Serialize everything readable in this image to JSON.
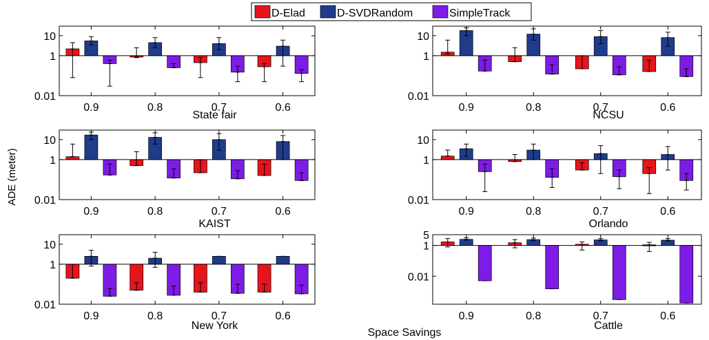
{
  "figure": {
    "ylabel": "ADE (meter)",
    "xlabel": "Space Savings",
    "legend_position": "top-center",
    "colors": {
      "D-Elad": "#e8141c",
      "D-SVDRandom": "#1f3c8c",
      "SimpleTrack": "#7d1ce6"
    }
  },
  "chart_data": [
    {
      "type": "bar",
      "subplot_title": "State fair",
      "yscale": "log",
      "baseline": 1,
      "categories": [
        "0.9",
        "0.8",
        "0.7",
        "0.6"
      ],
      "ylim": [
        0.01,
        30
      ],
      "yticks": [
        0.01,
        1,
        10
      ],
      "ytick_labels": [
        "0.01",
        "1",
        "10"
      ],
      "series": [
        {
          "name": "D-Elad",
          "values": [
            2.2,
            0.85,
            0.45,
            0.28
          ],
          "err_low": [
            0.08,
            0.8,
            0.08,
            0.05
          ],
          "err_high": [
            4.5,
            2.5,
            0.8,
            0.4
          ]
        },
        {
          "name": "D-SVDRandom",
          "values": [
            5.5,
            4.5,
            4.0,
            3.0
          ],
          "err_low": [
            3.5,
            2.5,
            2.0,
            0.3
          ],
          "err_high": [
            9.0,
            8.0,
            8.0,
            6.0
          ]
        },
        {
          "name": "SimpleTrack",
          "values": [
            0.4,
            0.25,
            0.15,
            0.13
          ],
          "err_low": [
            0.03,
            0.25,
            0.05,
            0.05
          ],
          "err_high": [
            0.6,
            0.4,
            0.3,
            0.2
          ]
        }
      ]
    },
    {
      "type": "bar",
      "subplot_title": "NCSU",
      "yscale": "log",
      "baseline": 1,
      "categories": [
        "0.9",
        "0.8",
        "0.7",
        "0.6"
      ],
      "ylim": [
        0.01,
        30
      ],
      "yticks": [
        0.01,
        1,
        10
      ],
      "ytick_labels": [
        "0.01",
        "1",
        "10"
      ],
      "series": [
        {
          "name": "D-Elad",
          "values": [
            1.5,
            0.5,
            0.22,
            0.16
          ],
          "err_low": [
            1.2,
            0.5,
            0.22,
            0.16
          ],
          "err_high": [
            6.0,
            2.5,
            1.0,
            0.6
          ]
        },
        {
          "name": "D-SVDRandom",
          "values": [
            18,
            12,
            9,
            8
          ],
          "err_low": [
            10,
            6,
            4,
            3
          ],
          "err_high": [
            25,
            22,
            18,
            15
          ]
        },
        {
          "name": "SimpleTrack",
          "values": [
            0.17,
            0.12,
            0.11,
            0.09
          ],
          "err_low": [
            0.17,
            0.12,
            0.11,
            0.09
          ],
          "err_high": [
            0.6,
            0.35,
            0.28,
            0.22
          ]
        }
      ]
    },
    {
      "type": "bar",
      "subplot_title": "KAIST",
      "yscale": "log",
      "baseline": 1,
      "categories": [
        "0.9",
        "0.8",
        "0.7",
        "0.6"
      ],
      "ylim": [
        0.01,
        30
      ],
      "yticks": [
        0.01,
        1,
        10
      ],
      "ytick_labels": [
        "0.01",
        "1",
        "10"
      ],
      "series": [
        {
          "name": "D-Elad",
          "values": [
            1.4,
            0.5,
            0.22,
            0.16
          ],
          "err_low": [
            1.4,
            0.5,
            0.22,
            0.16
          ],
          "err_high": [
            6.0,
            2.5,
            1.0,
            0.6
          ]
        },
        {
          "name": "D-SVDRandom",
          "values": [
            17,
            13,
            10,
            8
          ],
          "err_low": [
            10,
            6,
            3,
            1.0
          ],
          "err_high": [
            24,
            22,
            20,
            16
          ]
        },
        {
          "name": "SimpleTrack",
          "values": [
            0.17,
            0.12,
            0.11,
            0.09
          ],
          "err_low": [
            0.17,
            0.12,
            0.11,
            0.09
          ],
          "err_high": [
            0.6,
            0.35,
            0.28,
            0.22
          ]
        }
      ]
    },
    {
      "type": "bar",
      "subplot_title": "Orlando",
      "yscale": "log",
      "baseline": 1,
      "categories": [
        "0.9",
        "0.8",
        "0.7",
        "0.6"
      ],
      "ylim": [
        0.01,
        30
      ],
      "yticks": [
        0.01,
        1,
        10
      ],
      "ytick_labels": [
        "0.01",
        "1",
        "10"
      ],
      "series": [
        {
          "name": "D-Elad",
          "values": [
            1.5,
            0.8,
            0.3,
            0.2
          ],
          "err_low": [
            1.5,
            0.8,
            0.3,
            0.02
          ],
          "err_high": [
            3.0,
            1.8,
            0.7,
            0.4
          ]
        },
        {
          "name": "D-SVDRandom",
          "values": [
            3.5,
            3.0,
            2.0,
            1.8
          ],
          "err_low": [
            1.5,
            1.0,
            0.2,
            0.3
          ],
          "err_high": [
            6.0,
            6.0,
            5.0,
            4.5
          ]
        },
        {
          "name": "SimpleTrack",
          "values": [
            0.25,
            0.13,
            0.14,
            0.09
          ],
          "err_low": [
            0.025,
            0.04,
            0.035,
            0.03
          ],
          "err_high": [
            0.6,
            0.35,
            0.3,
            0.2
          ]
        }
      ]
    },
    {
      "type": "bar",
      "subplot_title": "New York",
      "yscale": "log",
      "baseline": 1,
      "categories": [
        "0.9",
        "0.8",
        "0.7",
        "0.6"
      ],
      "ylim": [
        0.01,
        30
      ],
      "yticks": [
        0.01,
        1,
        10
      ],
      "ytick_labels": [
        "0.01",
        "1",
        "10"
      ],
      "series": [
        {
          "name": "D-Elad",
          "values": [
            0.2,
            0.05,
            0.04,
            0.04
          ],
          "err_low": [
            0.2,
            0.05,
            0.04,
            0.04
          ],
          "err_high": [
            1.0,
            0.12,
            0.12,
            0.1
          ]
        },
        {
          "name": "D-SVDRandom",
          "values": [
            2.5,
            2.0,
            2.5,
            2.5
          ],
          "err_low": [
            0.8,
            0.7,
            2.5,
            2.5
          ],
          "err_high": [
            5.0,
            4.0,
            2.5,
            2.5
          ]
        },
        {
          "name": "SimpleTrack",
          "values": [
            0.025,
            0.028,
            0.035,
            0.033
          ],
          "err_low": [
            0.025,
            0.028,
            0.035,
            0.033
          ],
          "err_high": [
            0.06,
            0.08,
            0.1,
            0.09
          ]
        }
      ]
    },
    {
      "type": "bar",
      "subplot_title": "Cattle",
      "yscale": "log",
      "baseline": 1,
      "categories": [
        "0.9",
        "0.8",
        "0.7",
        "0.6"
      ],
      "ylim": [
        0.00015,
        5
      ],
      "yticks": [
        0.01,
        1,
        5
      ],
      "ytick_labels": [
        "0.01",
        "1",
        "5"
      ],
      "series": [
        {
          "name": "D-Elad",
          "values": [
            1.7,
            1.5,
            1.2,
            1.1
          ],
          "err_low": [
            0.8,
            0.7,
            0.5,
            0.4
          ],
          "err_high": [
            2.8,
            2.4,
            1.7,
            1.6
          ]
        },
        {
          "name": "D-SVDRandom",
          "values": [
            2.5,
            2.4,
            2.3,
            2.2
          ],
          "err_low": [
            2.2,
            2.0,
            2.0,
            2.0
          ],
          "err_high": [
            3.2,
            3.0,
            2.8,
            2.8
          ]
        },
        {
          "name": "SimpleTrack",
          "values": [
            0.005,
            0.0015,
            0.0003,
            0.00018
          ],
          "err_low": [
            0.005,
            0.0015,
            0.0003,
            0.00018
          ],
          "err_high": [
            0.005,
            0.0015,
            0.0003,
            0.00018
          ]
        }
      ]
    }
  ]
}
